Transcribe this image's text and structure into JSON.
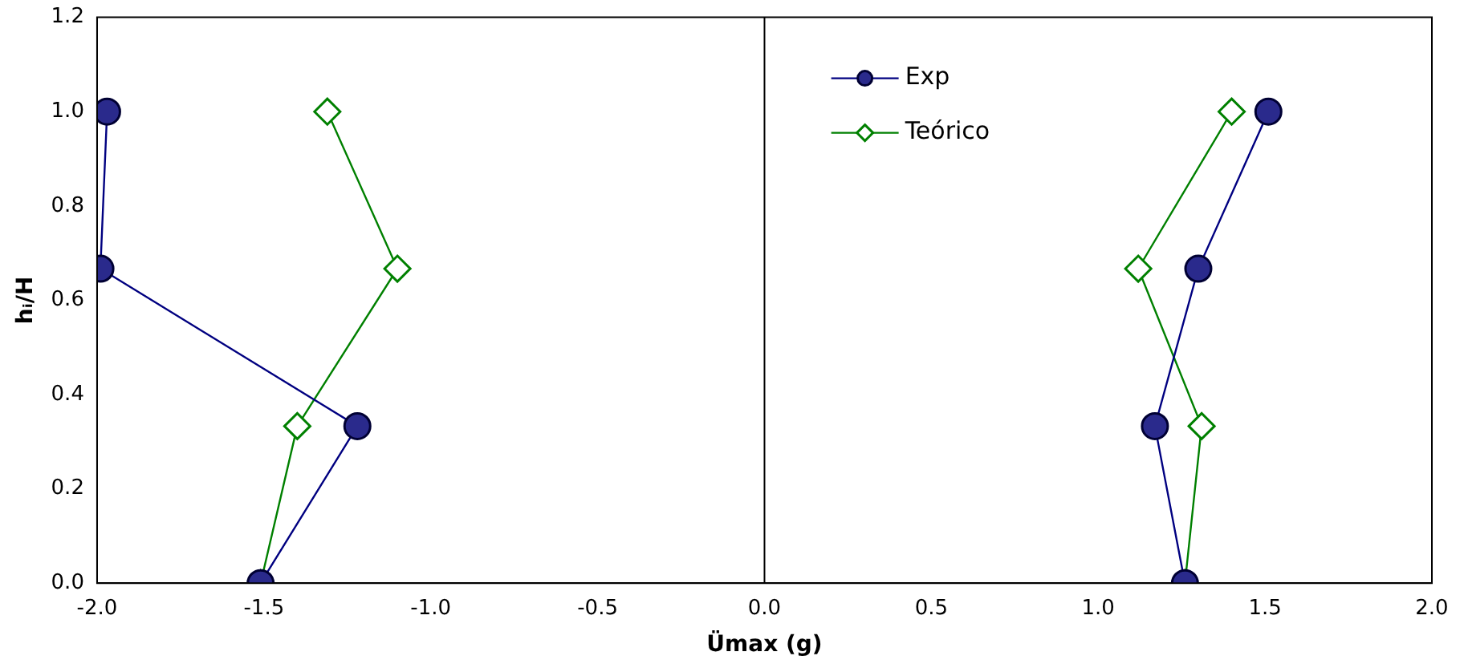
{
  "chart_data": {
    "type": "line",
    "xlabel": "Ümax (g)",
    "ylabel": "hᵢ/H",
    "xlim": [
      -2,
      2
    ],
    "ylim": [
      0,
      1.2
    ],
    "xticks": [
      {
        "value": -2,
        "label": "-2.0"
      },
      {
        "value": -1.5,
        "label": "-1.5"
      },
      {
        "value": -1,
        "label": "-1.0"
      },
      {
        "value": -0.5,
        "label": "-0.5"
      },
      {
        "value": 0,
        "label": "0.0"
      },
      {
        "value": 0.5,
        "label": "0.5"
      },
      {
        "value": 1,
        "label": "1.0"
      },
      {
        "value": 1.5,
        "label": "1.5"
      },
      {
        "value": 2,
        "label": "2.0"
      }
    ],
    "yticks": [
      {
        "value": 0,
        "label": "0.0"
      },
      {
        "value": 0.2,
        "label": "0.2"
      },
      {
        "value": 0.4,
        "label": "0.4"
      },
      {
        "value": 0.6,
        "label": "0.6"
      },
      {
        "value": 0.8,
        "label": "0.8"
      },
      {
        "value": 1,
        "label": "1.0"
      },
      {
        "value": 1.2,
        "label": "1.2"
      }
    ],
    "grid": false,
    "legend": "top right",
    "ref_lines": [
      {
        "axis": "x",
        "value": 0,
        "color": "#000000"
      }
    ],
    "series": [
      {
        "name": "Exp",
        "color": "#000080",
        "marker": "circle",
        "x": [
          -1.97,
          -1.99,
          -1.22,
          -1.51,
          null,
          1.26,
          1.17,
          1.3,
          1.51
        ],
        "values": [
          1,
          0.667,
          0.333,
          0,
          null,
          0,
          0.333,
          0.667,
          1
        ]
      },
      {
        "name": "Teórico",
        "color": "#008000",
        "marker": "diamond",
        "x": [
          -1.31,
          -1.1,
          -1.4,
          -1.51,
          null,
          1.26,
          1.31,
          1.12,
          1.4
        ],
        "values": [
          1,
          0.667,
          0.333,
          0,
          null,
          0,
          0.333,
          0.667,
          1
        ]
      }
    ]
  }
}
